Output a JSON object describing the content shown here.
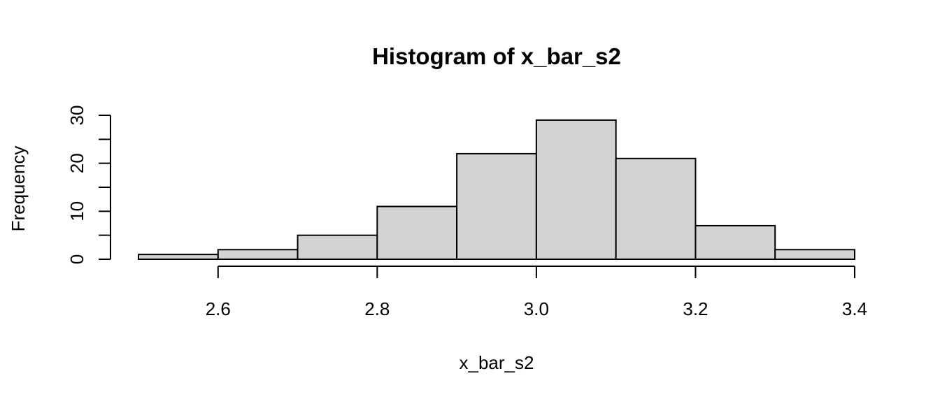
{
  "chart_data": {
    "type": "histogram",
    "title": "Histogram of x_bar_s2",
    "xlabel": "x_bar_s2",
    "ylabel": "Frequency",
    "bins": [
      {
        "start": 2.5,
        "end": 2.6,
        "count": 1
      },
      {
        "start": 2.6,
        "end": 2.7,
        "count": 2
      },
      {
        "start": 2.7,
        "end": 2.8,
        "count": 5
      },
      {
        "start": 2.8,
        "end": 2.9,
        "count": 11
      },
      {
        "start": 2.9,
        "end": 3.0,
        "count": 22
      },
      {
        "start": 3.0,
        "end": 3.1,
        "count": 29
      },
      {
        "start": 3.1,
        "end": 3.2,
        "count": 21
      },
      {
        "start": 3.2,
        "end": 3.3,
        "count": 7
      },
      {
        "start": 3.3,
        "end": 3.4,
        "count": 2
      }
    ],
    "x_ticks": [
      2.6,
      2.8,
      3.0,
      3.2,
      3.4
    ],
    "x_tick_labels": [
      "2.6",
      "2.8",
      "3.0",
      "3.2",
      "3.4"
    ],
    "y_ticks_major": [
      0,
      10,
      20,
      30
    ],
    "y_tick_labels": [
      "0",
      "10",
      "20",
      "30"
    ],
    "y_ticks_minor": [
      5,
      15,
      25
    ],
    "xlim": [
      2.5,
      3.4
    ],
    "ylim": [
      0,
      30
    ],
    "grid": false,
    "legend": "none",
    "bar_fill": "#d3d3d3",
    "bar_stroke": "#000000"
  }
}
